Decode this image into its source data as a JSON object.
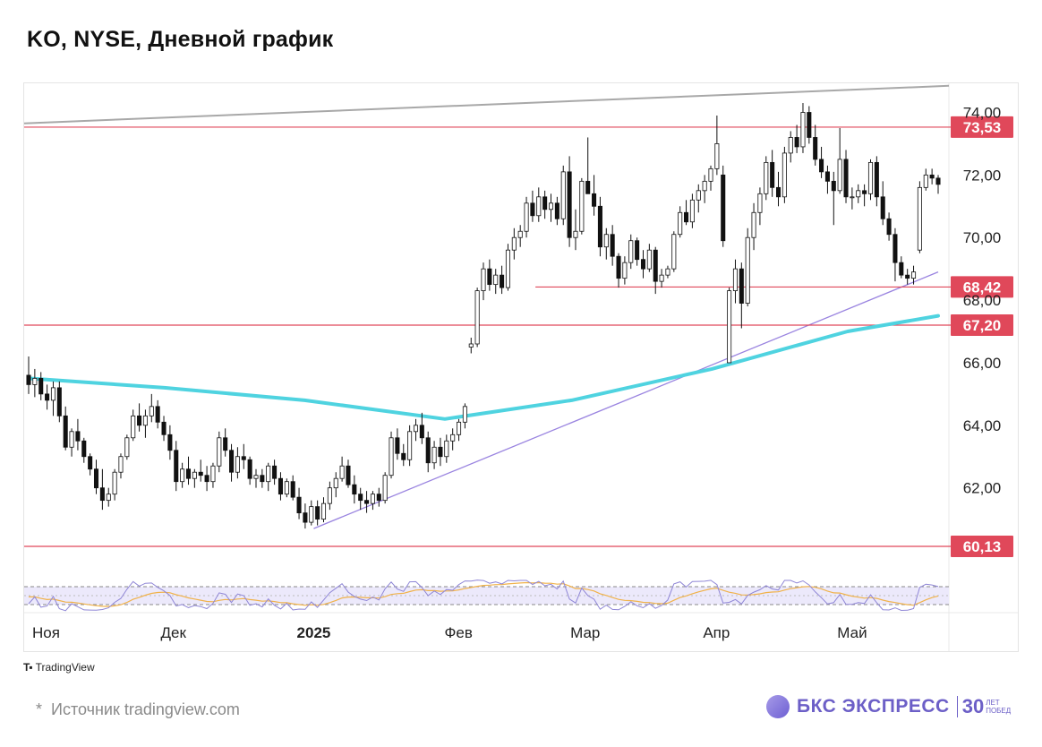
{
  "header": {
    "title": "KO, NYSE, Дневной график"
  },
  "footer": {
    "source_star": "*",
    "source_text": "Источник tradingview.com",
    "tv_logo_text": "TradingView",
    "brand_name": "БКС ЭКСПРЕСС",
    "brand_number": "30",
    "brand_years_top": "ЛЕТ",
    "brand_years_bottom": "ПОБЕД"
  },
  "colors": {
    "up_candle_fill": "#ffffff",
    "down_candle_fill": "#111111",
    "candle_outline": "#111111",
    "moving_average": "#4fd3e0",
    "level_line": "#e0485a",
    "level_label_bg": "#e0485a",
    "trendline": "#9a84e0",
    "channel_line": "#a8a8a8",
    "rsi_line": "#8f86d6",
    "rsi_signal": "#f0b24a",
    "rsi_band": "#ece9fb"
  },
  "chart_data": {
    "type": "candlestick",
    "symbol": "KO",
    "exchange": "NYSE",
    "timeframe": "Дневной",
    "x_tick_labels": [
      "Ноя",
      "Дек",
      "2025",
      "Фев",
      "Мар",
      "Апр",
      "Май"
    ],
    "y_ticks": [
      "74,00",
      "72,00",
      "70,00",
      "68,00",
      "66,00",
      "64,00",
      "62,00"
    ],
    "ylim": [
      60.13,
      74.73
    ],
    "levels": [
      {
        "label": "73,53",
        "value": 73.53
      },
      {
        "label": "68,42",
        "value": 68.42
      },
      {
        "label": "67,20",
        "value": 67.2
      },
      {
        "label": "60,13",
        "value": 60.13
      }
    ],
    "trendlines": [
      {
        "name": "rising support",
        "from": [
          "2025-01-02",
          60.7
        ],
        "to": [
          "2025-05-20",
          68.9
        ]
      },
      {
        "name": "upper channel",
        "from": [
          "2024-10-31",
          73.65
        ],
        "to": [
          "2025-05-20",
          74.85
        ]
      }
    ],
    "moving_average": [
      [
        "2024-10-31",
        65.5
      ],
      [
        "2024-11-30",
        65.2
      ],
      [
        "2024-12-31",
        64.8
      ],
      [
        "2025-01-31",
        64.2
      ],
      [
        "2025-02-28",
        64.8
      ],
      [
        "2025-03-31",
        65.8
      ],
      [
        "2025-04-30",
        67.0
      ],
      [
        "2025-05-20",
        67.5
      ]
    ],
    "rsi_range": [
      0,
      100
    ],
    "rsi_bands": [
      30,
      70
    ],
    "candles_ohlc": [
      [
        65.6,
        66.2,
        65.0,
        65.3
      ],
      [
        65.3,
        65.8,
        64.9,
        65.5
      ],
      [
        65.5,
        65.7,
        64.8,
        65.0
      ],
      [
        65.0,
        65.3,
        64.5,
        64.8
      ],
      [
        64.8,
        65.4,
        64.3,
        65.2
      ],
      [
        65.2,
        65.4,
        64.1,
        64.3
      ],
      [
        64.3,
        64.6,
        63.2,
        63.3
      ],
      [
        63.3,
        63.9,
        63.0,
        63.8
      ],
      [
        63.8,
        64.2,
        63.2,
        63.5
      ],
      [
        63.5,
        63.6,
        62.8,
        63.0
      ],
      [
        63.0,
        63.1,
        62.4,
        62.6
      ],
      [
        62.6,
        62.9,
        61.8,
        62.0
      ],
      [
        62.0,
        62.6,
        61.3,
        61.6
      ],
      [
        61.6,
        62.0,
        61.4,
        61.8
      ],
      [
        61.8,
        62.6,
        61.6,
        62.5
      ],
      [
        62.5,
        63.1,
        62.3,
        63.0
      ],
      [
        63.0,
        63.7,
        62.9,
        63.6
      ],
      [
        63.6,
        64.5,
        63.5,
        64.3
      ],
      [
        64.3,
        64.7,
        63.8,
        64.0
      ],
      [
        64.0,
        64.5,
        63.6,
        64.3
      ],
      [
        64.3,
        65.0,
        64.1,
        64.6
      ],
      [
        64.6,
        64.8,
        63.9,
        64.1
      ],
      [
        64.1,
        64.3,
        63.5,
        63.7
      ],
      [
        63.7,
        64.0,
        62.9,
        63.2
      ],
      [
        63.2,
        63.5,
        61.9,
        62.2
      ],
      [
        62.2,
        62.8,
        62.0,
        62.6
      ],
      [
        62.6,
        63.0,
        62.1,
        62.3
      ],
      [
        62.3,
        62.6,
        62.0,
        62.5
      ],
      [
        62.5,
        62.9,
        62.2,
        62.4
      ],
      [
        62.4,
        62.7,
        61.9,
        62.2
      ],
      [
        62.2,
        62.8,
        62.0,
        62.7
      ],
      [
        62.7,
        63.8,
        62.5,
        63.6
      ],
      [
        63.6,
        63.9,
        63.0,
        63.2
      ],
      [
        63.2,
        63.4,
        62.2,
        62.5
      ],
      [
        62.5,
        63.3,
        62.3,
        63.0
      ],
      [
        63.0,
        63.4,
        62.6,
        62.9
      ],
      [
        62.9,
        63.0,
        62.1,
        62.3
      ],
      [
        62.3,
        62.6,
        62.0,
        62.4
      ],
      [
        62.4,
        62.6,
        62.0,
        62.2
      ],
      [
        62.2,
        62.8,
        61.9,
        62.7
      ],
      [
        62.7,
        62.9,
        62.1,
        62.3
      ],
      [
        62.3,
        62.5,
        61.6,
        61.8
      ],
      [
        61.8,
        62.3,
        61.7,
        62.2
      ],
      [
        62.2,
        62.4,
        61.6,
        61.7
      ],
      [
        61.7,
        62.0,
        61.0,
        61.2
      ],
      [
        61.2,
        61.5,
        60.7,
        60.9
      ],
      [
        60.9,
        61.6,
        60.8,
        61.4
      ],
      [
        61.4,
        61.6,
        60.8,
        61.0
      ],
      [
        61.0,
        61.7,
        60.9,
        61.5
      ],
      [
        61.5,
        62.2,
        61.3,
        62.0
      ],
      [
        62.0,
        62.5,
        61.7,
        62.3
      ],
      [
        62.3,
        63.0,
        62.2,
        62.7
      ],
      [
        62.7,
        62.9,
        62.0,
        62.1
      ],
      [
        62.1,
        62.4,
        61.5,
        61.8
      ],
      [
        61.8,
        62.0,
        61.3,
        61.6
      ],
      [
        61.6,
        61.9,
        61.2,
        61.5
      ],
      [
        61.5,
        61.9,
        61.3,
        61.8
      ],
      [
        61.8,
        62.0,
        61.4,
        61.6
      ],
      [
        61.6,
        62.5,
        61.5,
        62.4
      ],
      [
        62.4,
        63.8,
        62.3,
        63.6
      ],
      [
        63.6,
        63.9,
        62.9,
        63.1
      ],
      [
        63.1,
        63.4,
        62.7,
        62.9
      ],
      [
        62.9,
        64.0,
        62.7,
        63.8
      ],
      [
        63.8,
        64.2,
        63.5,
        64.0
      ],
      [
        64.0,
        64.4,
        63.4,
        63.6
      ],
      [
        63.6,
        63.8,
        62.5,
        62.8
      ],
      [
        62.8,
        63.5,
        62.6,
        63.3
      ],
      [
        63.3,
        63.6,
        62.7,
        63.0
      ],
      [
        63.0,
        63.7,
        62.8,
        63.5
      ],
      [
        63.5,
        63.9,
        63.2,
        63.7
      ],
      [
        63.7,
        64.2,
        63.5,
        64.1
      ],
      [
        64.1,
        64.7,
        63.9,
        64.6
      ],
      [
        66.5,
        66.8,
        66.3,
        66.6
      ],
      [
        66.6,
        68.4,
        66.5,
        68.3
      ],
      [
        68.3,
        69.2,
        68.0,
        69.0
      ],
      [
        69.0,
        69.3,
        68.3,
        68.5
      ],
      [
        68.5,
        69.0,
        68.2,
        68.8
      ],
      [
        68.8,
        69.1,
        68.2,
        68.4
      ],
      [
        68.4,
        69.8,
        68.3,
        69.6
      ],
      [
        69.6,
        70.3,
        69.3,
        70.0
      ],
      [
        70.0,
        70.4,
        69.7,
        70.2
      ],
      [
        70.2,
        71.3,
        70.0,
        71.1
      ],
      [
        71.1,
        71.5,
        70.5,
        70.7
      ],
      [
        70.7,
        71.6,
        70.5,
        71.3
      ],
      [
        71.3,
        71.5,
        70.6,
        70.9
      ],
      [
        70.9,
        71.4,
        70.5,
        71.1
      ],
      [
        71.1,
        71.3,
        70.4,
        70.6
      ],
      [
        70.6,
        72.3,
        70.4,
        72.1
      ],
      [
        72.1,
        72.6,
        69.7,
        70.0
      ],
      [
        70.0,
        70.9,
        69.6,
        70.2
      ],
      [
        70.2,
        71.9,
        70.1,
        71.8
      ],
      [
        71.8,
        73.2,
        71.4,
        71.4
      ],
      [
        71.4,
        72.0,
        70.7,
        71.0
      ],
      [
        71.0,
        71.3,
        69.4,
        69.7
      ],
      [
        69.7,
        70.3,
        69.3,
        70.1
      ],
      [
        70.1,
        70.4,
        69.1,
        69.4
      ],
      [
        69.4,
        69.5,
        68.4,
        68.7
      ],
      [
        68.7,
        69.4,
        68.5,
        69.2
      ],
      [
        69.2,
        70.1,
        69.0,
        69.9
      ],
      [
        69.9,
        70.0,
        69.1,
        69.3
      ],
      [
        69.3,
        69.6,
        68.7,
        69.0
      ],
      [
        69.0,
        69.8,
        68.9,
        69.6
      ],
      [
        69.6,
        69.7,
        68.2,
        68.6
      ],
      [
        68.6,
        69.0,
        68.4,
        68.8
      ],
      [
        68.8,
        69.1,
        68.7,
        69.0
      ],
      [
        69.0,
        70.2,
        68.9,
        70.1
      ],
      [
        70.1,
        71.0,
        70.0,
        70.8
      ],
      [
        70.8,
        71.2,
        70.4,
        70.5
      ],
      [
        70.5,
        71.4,
        70.3,
        71.2
      ],
      [
        71.2,
        71.7,
        70.8,
        71.5
      ],
      [
        71.5,
        72.0,
        71.1,
        71.8
      ],
      [
        71.8,
        72.3,
        71.5,
        72.2
      ],
      [
        72.2,
        73.9,
        72.0,
        73.0
      ],
      [
        72.0,
        72.3,
        69.7,
        69.9
      ],
      [
        66.0,
        68.4,
        66.0,
        68.3
      ],
      [
        68.3,
        69.3,
        67.9,
        69.0
      ],
      [
        69.0,
        69.2,
        67.1,
        67.9
      ],
      [
        67.9,
        70.3,
        67.8,
        70.0
      ],
      [
        70.0,
        71.1,
        69.6,
        70.8
      ],
      [
        70.8,
        71.6,
        70.4,
        71.4
      ],
      [
        71.4,
        72.6,
        71.2,
        72.4
      ],
      [
        72.4,
        72.8,
        71.3,
        71.6
      ],
      [
        71.6,
        72.1,
        71.0,
        71.3
      ],
      [
        71.3,
        72.9,
        71.1,
        72.7
      ],
      [
        72.7,
        73.4,
        72.4,
        73.2
      ],
      [
        73.2,
        73.6,
        72.7,
        72.9
      ],
      [
        72.9,
        74.3,
        72.7,
        74.0
      ],
      [
        74.0,
        74.2,
        73.0,
        73.2
      ],
      [
        73.2,
        73.6,
        72.3,
        72.5
      ],
      [
        72.5,
        72.9,
        71.9,
        72.1
      ],
      [
        72.1,
        72.3,
        71.4,
        71.8
      ],
      [
        71.8,
        72.1,
        70.4,
        71.5
      ],
      [
        71.5,
        73.5,
        71.4,
        72.5
      ],
      [
        72.5,
        72.8,
        71.1,
        71.3
      ],
      [
        71.3,
        71.6,
        70.9,
        71.3
      ],
      [
        71.3,
        71.7,
        71.1,
        71.5
      ],
      [
        71.5,
        71.7,
        71.0,
        71.4
      ],
      [
        71.4,
        72.5,
        71.2,
        72.4
      ],
      [
        72.4,
        72.6,
        71.0,
        71.3
      ],
      [
        71.3,
        71.8,
        70.4,
        70.6
      ],
      [
        70.6,
        70.8,
        69.9,
        70.1
      ],
      [
        70.1,
        70.3,
        68.6,
        69.2
      ],
      [
        69.2,
        69.4,
        68.7,
        68.8
      ],
      [
        68.8,
        69.0,
        68.5,
        68.7
      ],
      [
        68.7,
        69.1,
        68.5,
        68.9
      ],
      [
        69.6,
        71.8,
        69.5,
        71.6
      ],
      [
        71.6,
        72.2,
        71.5,
        72.0
      ],
      [
        72.0,
        72.2,
        71.7,
        71.9
      ],
      [
        71.9,
        72.0,
        71.4,
        71.7
      ]
    ]
  }
}
